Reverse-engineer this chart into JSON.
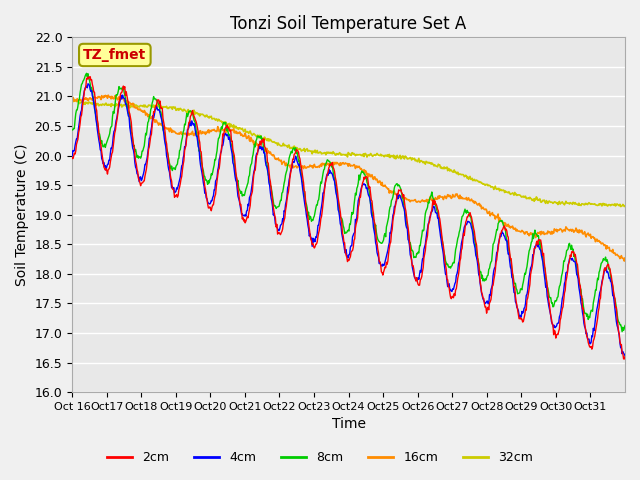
{
  "title": "Tonzi Soil Temperature Set A",
  "xlabel": "Time",
  "ylabel": "Soil Temperature (C)",
  "ylim": [
    16.0,
    22.0
  ],
  "yticks": [
    16.0,
    16.5,
    17.0,
    17.5,
    18.0,
    18.5,
    19.0,
    19.5,
    20.0,
    20.5,
    21.0,
    21.5,
    22.0
  ],
  "xtick_labels": [
    "Oct 16",
    "Oct 17",
    "Oct 18",
    "Oct 19",
    "Oct 20",
    "Oct 21",
    "Oct 22",
    "Oct 23",
    "Oct 24",
    "Oct 25",
    "Oct 26",
    "Oct 27",
    "Oct 28",
    "Oct 29",
    "Oct 30",
    "Oct 31"
  ],
  "xtick_labels_short": [
    "Oct 16",
    "Oct 17",
    "Oct 18",
    "Oct 19",
    "Oct 20",
    "Oct 21",
    "Oct 22",
    "Oct 23",
    "Oct 24",
    "Oct 25",
    "Oct 26",
    "Oct 27",
    "Oct 28",
    "Oct 29",
    "Oct 30",
    "Oct 31"
  ],
  "colors": {
    "2cm": "#ff0000",
    "4cm": "#0000ff",
    "8cm": "#00cc00",
    "16cm": "#ff8c00",
    "32cm": "#cccc00"
  },
  "legend_label": "TZ_fmet",
  "background_color": "#e8e8e8",
  "grid_color": "#ffffff",
  "n_days": 16,
  "points_per_day": 48
}
